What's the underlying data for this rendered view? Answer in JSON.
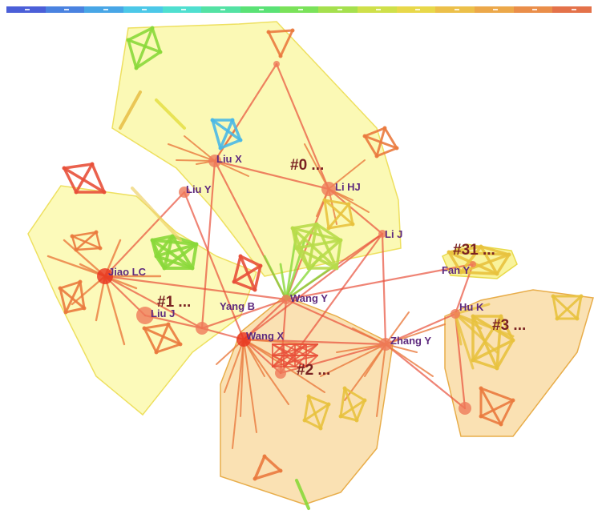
{
  "colorbar": {
    "colors": [
      "#4b5fd8",
      "#4a82e0",
      "#48a6e6",
      "#4cc8e8",
      "#4fdfd0",
      "#53e2a4",
      "#5ae276",
      "#7ae25a",
      "#a5e04e",
      "#cfe04a",
      "#e8d84a",
      "#ecc04a",
      "#eca84a",
      "#ea8e4a",
      "#e4724a"
    ]
  },
  "authors": [
    {
      "id": "liu-x",
      "label": "Liu X"
    },
    {
      "id": "liu-y",
      "label": "Liu Y"
    },
    {
      "id": "li-hj",
      "label": "Li HJ"
    },
    {
      "id": "li-j",
      "label": "Li J"
    },
    {
      "id": "jiao-lc",
      "label": "Jiao LC"
    },
    {
      "id": "liu-j",
      "label": "Liu J"
    },
    {
      "id": "yang-b",
      "label": "Yang B"
    },
    {
      "id": "wang-y",
      "label": "Wang Y"
    },
    {
      "id": "wang-x",
      "label": "Wang X"
    },
    {
      "id": "zhang-y",
      "label": "Zhang Y"
    },
    {
      "id": "fan-y",
      "label": "Fan Y"
    },
    {
      "id": "hu-k",
      "label": "Hu K"
    }
  ],
  "clusters": [
    {
      "id": "c0",
      "label": "#0 ..."
    },
    {
      "id": "c1",
      "label": "#1 ..."
    },
    {
      "id": "c2",
      "label": "#2 ..."
    },
    {
      "id": "c3",
      "label": "#3 ..."
    },
    {
      "id": "c31",
      "label": "#31 ..."
    }
  ]
}
